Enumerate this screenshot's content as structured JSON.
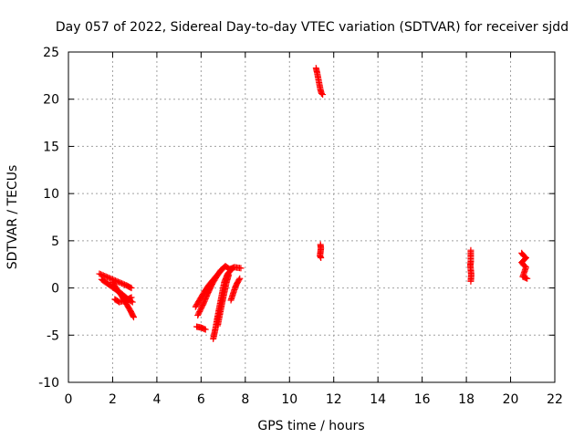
{
  "chart_data": {
    "type": "scatter",
    "title": "Day 057 of 2022, Sidereal Day-to-day VTEC variation (SDTVAR) for receiver sjdd",
    "xlabel": "GPS time / hours",
    "ylabel": "SDTVAR / TECUs",
    "xlim": [
      0,
      22
    ],
    "ylim": [
      -10,
      25
    ],
    "xticks": [
      0,
      2,
      4,
      6,
      8,
      10,
      12,
      14,
      16,
      18,
      20,
      22
    ],
    "yticks": [
      -10,
      -5,
      0,
      5,
      10,
      15,
      20,
      25
    ],
    "grid": true,
    "marker": "+",
    "series": [
      {
        "name": "SDTVAR",
        "color": "#ff0000",
        "segments": [
          [
            [
              1.4,
              1.5
            ],
            [
              1.7,
              1.2
            ],
            [
              2.0,
              0.9
            ],
            [
              2.3,
              0.6
            ],
            [
              2.6,
              0.3
            ],
            [
              2.85,
              0.0
            ]
          ],
          [
            [
              1.5,
              0.9
            ],
            [
              1.8,
              0.4
            ],
            [
              2.1,
              -0.1
            ],
            [
              2.4,
              -0.6
            ],
            [
              2.7,
              -1.2
            ],
            [
              2.9,
              -1.5
            ]
          ],
          [
            [
              2.0,
              0.6
            ],
            [
              2.2,
              -0.2
            ],
            [
              2.4,
              -0.8
            ],
            [
              2.6,
              -1.6
            ],
            [
              2.8,
              -2.4
            ],
            [
              2.95,
              -3.1
            ]
          ],
          [
            [
              2.1,
              -1.2
            ],
            [
              2.3,
              -1.5
            ],
            [
              2.6,
              -1.3
            ],
            [
              2.85,
              -1.0
            ]
          ],
          [
            [
              5.75,
              -2.0
            ],
            [
              5.95,
              -1.2
            ],
            [
              6.15,
              -0.4
            ],
            [
              6.35,
              0.3
            ],
            [
              6.6,
              1.0
            ],
            [
              6.85,
              1.7
            ],
            [
              7.05,
              2.2
            ]
          ],
          [
            [
              5.85,
              -2.9
            ],
            [
              6.1,
              -1.7
            ],
            [
              6.3,
              -0.6
            ],
            [
              6.5,
              0.4
            ],
            [
              6.7,
              1.2
            ],
            [
              6.9,
              1.9
            ],
            [
              7.1,
              2.3
            ]
          ],
          [
            [
              5.8,
              -4.1
            ],
            [
              6.0,
              -4.2
            ],
            [
              6.2,
              -4.4
            ]
          ],
          [
            [
              6.55,
              -5.4
            ],
            [
              6.65,
              -4.3
            ],
            [
              6.75,
              -3.0
            ],
            [
              6.85,
              -1.8
            ],
            [
              6.95,
              -0.6
            ],
            [
              7.05,
              0.6
            ],
            [
              7.2,
              1.5
            ],
            [
              7.4,
              2.0
            ]
          ],
          [
            [
              6.75,
              -4.0
            ],
            [
              6.85,
              -2.8
            ],
            [
              6.95,
              -1.6
            ],
            [
              7.05,
              -0.5
            ],
            [
              7.15,
              0.6
            ],
            [
              7.25,
              1.4
            ]
          ],
          [
            [
              7.1,
              2.3
            ],
            [
              7.3,
              2.0
            ],
            [
              7.5,
              2.2
            ],
            [
              7.8,
              2.1
            ]
          ],
          [
            [
              7.35,
              -1.3
            ],
            [
              7.45,
              -0.6
            ],
            [
              7.55,
              0.1
            ],
            [
              7.65,
              0.6
            ],
            [
              7.75,
              1.0
            ]
          ],
          [
            [
              11.2,
              23.3
            ],
            [
              11.25,
              22.8
            ],
            [
              11.3,
              22.2
            ],
            [
              11.35,
              21.6
            ],
            [
              11.4,
              21.0
            ],
            [
              11.45,
              20.6
            ],
            [
              11.5,
              20.5
            ]
          ],
          [
            [
              11.4,
              4.6
            ],
            [
              11.42,
              4.2
            ],
            [
              11.38,
              3.4
            ],
            [
              11.42,
              3.2
            ]
          ],
          [
            [
              18.2,
              4.0
            ],
            [
              18.2,
              2.8
            ],
            [
              18.18,
              2.4
            ],
            [
              18.22,
              1.4
            ],
            [
              18.2,
              0.7
            ]
          ],
          [
            [
              20.5,
              3.7
            ],
            [
              20.6,
              3.4
            ],
            [
              20.7,
              3.2
            ],
            [
              20.5,
              2.7
            ],
            [
              20.6,
              2.4
            ],
            [
              20.7,
              2.2
            ],
            [
              20.55,
              1.2
            ],
            [
              20.65,
              1.1
            ],
            [
              20.75,
              1.0
            ]
          ]
        ]
      }
    ]
  }
}
